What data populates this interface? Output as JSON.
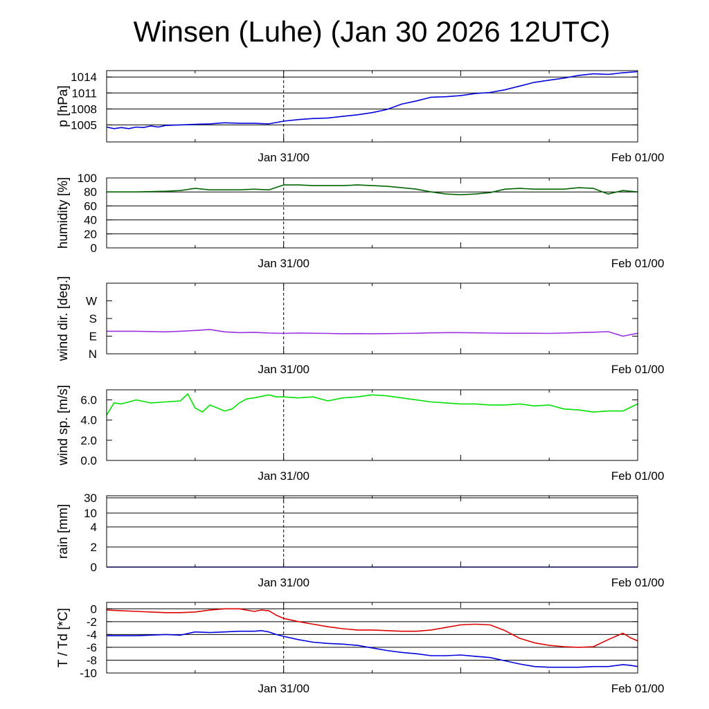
{
  "title": "Winsen (Luhe) (Jan 30 2026 12UTC)",
  "chart_data": [
    {
      "type": "line",
      "id": "pressure",
      "ylabel": "p [hPa]",
      "xticks": [
        "Jan 31/00",
        "Feb 01/00"
      ],
      "ylim": [
        1001.8,
        1015.2
      ],
      "yticks": [
        1005,
        1008,
        1011,
        1014
      ],
      "ytick_labels": [
        "1005",
        "1008",
        "1011",
        "1014"
      ],
      "hgrid": [
        1005,
        1008,
        1011,
        1014
      ],
      "x": [
        0,
        0.5,
        1,
        1.5,
        2,
        2.5,
        3,
        3.5,
        4,
        5,
        6,
        7,
        8,
        9,
        10,
        11,
        12,
        13,
        14,
        15,
        16,
        17,
        18,
        19,
        20,
        21,
        22,
        23,
        24,
        25,
        26,
        27,
        28,
        29,
        30,
        31,
        32,
        33,
        34,
        35,
        36
      ],
      "series": [
        {
          "name": "pressure",
          "color": "#0000dd",
          "values": [
            1004.6,
            1004.3,
            1004.5,
            1004.3,
            1004.6,
            1004.5,
            1004.8,
            1004.6,
            1004.9,
            1005.0,
            1005.1,
            1005.2,
            1005.4,
            1005.3,
            1005.3,
            1005.2,
            1005.7,
            1006.0,
            1006.2,
            1006.3,
            1006.6,
            1006.9,
            1007.3,
            1007.9,
            1008.9,
            1009.5,
            1010.2,
            1010.3,
            1010.5,
            1010.9,
            1011.1,
            1011.6,
            1012.3,
            1013.0,
            1013.4,
            1013.8,
            1014.3,
            1014.6,
            1014.5,
            1014.8,
            1015.0
          ]
        }
      ]
    },
    {
      "type": "line",
      "id": "humidity",
      "ylabel": "humidity [%]",
      "xticks": [
        "Jan 31/00",
        "Feb 01/00"
      ],
      "ylim": [
        0,
        100
      ],
      "yticks": [
        0,
        20,
        40,
        60,
        80,
        100
      ],
      "ytick_labels": [
        "0",
        "20",
        "40",
        "60",
        "80",
        "100"
      ],
      "hgrid": [
        20,
        40,
        60,
        80
      ],
      "x": [
        0,
        2,
        4,
        5,
        6,
        7,
        8,
        9,
        10,
        11,
        12,
        13,
        14,
        15,
        16,
        17,
        18,
        19,
        20,
        21,
        22,
        23,
        24,
        25,
        26,
        27,
        28,
        29,
        30,
        31,
        32,
        33,
        34,
        35,
        36
      ],
      "series": [
        {
          "name": "humidity",
          "color": "#006400",
          "values": [
            80,
            80,
            81,
            82,
            85,
            83,
            83,
            83,
            84,
            83,
            90,
            90,
            89,
            89,
            89,
            90,
            89,
            88,
            86,
            84,
            80,
            77,
            76,
            77,
            79,
            84,
            85,
            84,
            84,
            84,
            86,
            85,
            77,
            82,
            80
          ]
        }
      ]
    },
    {
      "type": "line",
      "id": "wind_direction",
      "ylabel": "wind dir. [deg.]",
      "xticks": [
        "Jan 31/00",
        "Feb 01/00"
      ],
      "ylim": [
        0,
        360
      ],
      "yticks": [
        0,
        90,
        180,
        270
      ],
      "ytick_labels": [
        "N",
        "E",
        "S",
        "W"
      ],
      "hgrid": [],
      "x": [
        0,
        2,
        4,
        5,
        6,
        7,
        8,
        9,
        10,
        11,
        12,
        13,
        14,
        15,
        16,
        17,
        18,
        19,
        20,
        21,
        22,
        23,
        24,
        25,
        26,
        27,
        28,
        29,
        30,
        31,
        32,
        33,
        34,
        35,
        36
      ],
      "series": [
        {
          "name": "wind direction",
          "color": "#9a30e0",
          "values": [
            115,
            115,
            112,
            115,
            119,
            124,
            112,
            108,
            109,
            106,
            104,
            106,
            105,
            104,
            102,
            103,
            102,
            103,
            104,
            105,
            107,
            108,
            108,
            107,
            106,
            105,
            105,
            105,
            104,
            106,
            108,
            110,
            113,
            90,
            105
          ]
        }
      ]
    },
    {
      "type": "line",
      "id": "wind_speed",
      "ylabel": "wind sp. [m/s]",
      "xticks": [
        "Jan 31/00",
        "Feb 01/00"
      ],
      "ylim": [
        0,
        7
      ],
      "yticks": [
        0,
        2,
        4,
        6
      ],
      "ytick_labels": [
        "0.0",
        "2.0",
        "4.0",
        "6.0"
      ],
      "hgrid": [],
      "x": [
        0,
        0.5,
        1,
        2,
        3,
        4,
        5,
        5.5,
        6,
        6.5,
        7,
        7.5,
        8,
        8.5,
        9,
        9.5,
        10,
        11,
        11.5,
        12,
        13,
        14,
        15,
        16,
        17,
        18,
        19,
        20,
        21,
        22,
        23,
        24,
        25,
        26,
        27,
        28,
        29,
        30,
        31,
        32,
        33,
        34,
        35,
        36
      ],
      "series": [
        {
          "name": "wind speed",
          "color": "#00e000",
          "values": [
            4.5,
            5.7,
            5.6,
            6.0,
            5.7,
            5.8,
            5.9,
            6.6,
            5.2,
            4.8,
            5.5,
            5.2,
            4.9,
            5.1,
            5.7,
            6.1,
            6.2,
            6.5,
            6.3,
            6.3,
            6.2,
            6.3,
            5.9,
            6.2,
            6.3,
            6.5,
            6.4,
            6.2,
            6.0,
            5.8,
            5.7,
            5.6,
            5.6,
            5.5,
            5.5,
            5.6,
            5.4,
            5.5,
            5.1,
            5.0,
            4.8,
            4.9,
            4.9,
            5.6
          ]
        }
      ]
    },
    {
      "type": "line",
      "id": "rain",
      "ylabel": "rain [mm]",
      "xticks": [
        "Jan 31/00",
        "Feb 01/00"
      ],
      "ylim": [
        0,
        30
      ],
      "yticks": [
        0,
        2,
        4,
        10,
        30
      ],
      "ytick_labels": [
        "0",
        "2",
        "4",
        "10",
        "30"
      ],
      "hgrid": [
        2,
        4,
        10,
        30
      ],
      "x": [
        0,
        36
      ],
      "series": [
        {
          "name": "rain",
          "color": "#0000dd",
          "values": [
            0,
            0
          ]
        }
      ]
    },
    {
      "type": "line",
      "id": "temperature",
      "ylabel": "T / Td [*C]",
      "xticks": [
        "Jan 31/00",
        "Feb 01/00"
      ],
      "ylim": [
        -10,
        1
      ],
      "yticks": [
        -10,
        -8,
        -6,
        -4,
        -2,
        0
      ],
      "ytick_labels": [
        "-10",
        "-8",
        "-6",
        "-4",
        "-2",
        "0"
      ],
      "hgrid": [
        -8,
        -6,
        -4,
        -2,
        0
      ],
      "x": [
        0,
        1,
        2,
        3,
        4,
        5,
        6,
        7,
        8,
        9,
        10,
        10.5,
        11,
        11.5,
        12,
        13,
        14,
        15,
        16,
        17,
        18,
        19,
        20,
        21,
        22,
        23,
        24,
        25,
        26,
        27,
        28,
        29,
        30,
        31,
        32,
        33,
        34,
        35,
        35.5,
        36
      ],
      "series": [
        {
          "name": "T",
          "color": "#dd0000",
          "values": [
            -0.2,
            -0.3,
            -0.4,
            -0.5,
            -0.6,
            -0.6,
            -0.5,
            -0.2,
            0,
            0,
            -0.4,
            -0.2,
            -0.3,
            -1.0,
            -1.5,
            -2.0,
            -2.4,
            -2.8,
            -3.1,
            -3.3,
            -3.3,
            -3.4,
            -3.5,
            -3.5,
            -3.3,
            -2.9,
            -2.5,
            -2.4,
            -2.5,
            -3.4,
            -4.6,
            -5.3,
            -5.7,
            -5.9,
            -6.0,
            -5.9,
            -4.8,
            -3.8,
            -4.5,
            -5.0
          ]
        },
        {
          "name": "Td",
          "color": "#0000dd",
          "values": [
            -4.2,
            -4.2,
            -4.2,
            -4.1,
            -4.0,
            -4.1,
            -3.6,
            -3.7,
            -3.6,
            -3.5,
            -3.5,
            -3.4,
            -3.6,
            -4.0,
            -4.3,
            -4.8,
            -5.2,
            -5.4,
            -5.5,
            -5.7,
            -6.1,
            -6.5,
            -6.8,
            -7.0,
            -7.3,
            -7.3,
            -7.2,
            -7.4,
            -7.6,
            -8.1,
            -8.6,
            -9.0,
            -9.1,
            -9.1,
            -9.1,
            -9.0,
            -9.0,
            -8.7,
            -8.8,
            -9.0
          ]
        }
      ]
    }
  ]
}
